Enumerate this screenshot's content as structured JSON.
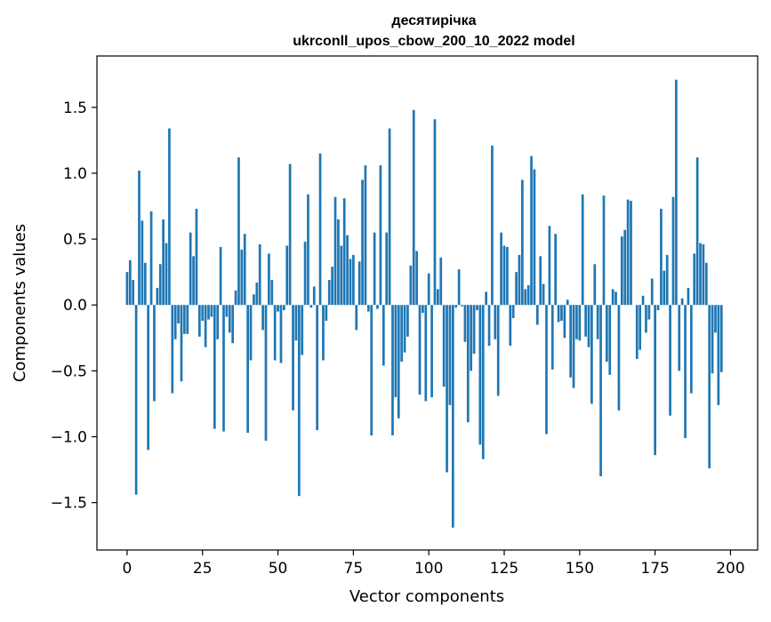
{
  "chart_data": {
    "type": "bar",
    "title": "десятирічка",
    "subtitle": "ukrconll_upos_cbow_200_10_2022 model",
    "xlabel": "Vector components",
    "ylabel": "Components values",
    "xlim": [
      -10,
      209
    ],
    "ylim": [
      -1.86,
      1.89
    ],
    "x_ticks": [
      0,
      25,
      50,
      75,
      100,
      125,
      150,
      175,
      200
    ],
    "y_ticks": [
      -1.5,
      -1.0,
      -0.5,
      0.0,
      0.5,
      1.0,
      1.5
    ],
    "y_tick_labels": [
      "−1.5",
      "−1.0",
      "−0.5",
      "0.0",
      "0.5",
      "1.0",
      "1.5"
    ],
    "grid": false,
    "legend": "none",
    "bar_color": "#1f77b4",
    "values": [
      0.25,
      0.34,
      0.19,
      -1.44,
      1.02,
      0.64,
      0.32,
      -1.1,
      0.71,
      -0.73,
      0.13,
      0.31,
      0.65,
      0.47,
      1.34,
      -0.67,
      -0.26,
      -0.14,
      -0.58,
      -0.22,
      -0.22,
      0.55,
      0.37,
      0.73,
      -0.24,
      -0.12,
      -0.32,
      -0.11,
      -0.09,
      -0.94,
      -0.26,
      0.44,
      -0.96,
      -0.09,
      -0.21,
      -0.29,
      0.11,
      1.12,
      0.42,
      0.54,
      -0.97,
      -0.42,
      0.08,
      0.17,
      0.46,
      -0.19,
      -1.03,
      0.39,
      0.19,
      -0.42,
      -0.05,
      -0.44,
      -0.04,
      0.45,
      1.07,
      -0.8,
      -0.27,
      -1.45,
      -0.38,
      0.48,
      0.84,
      -0.02,
      0.14,
      -0.95,
      1.15,
      -0.42,
      -0.12,
      0.19,
      0.29,
      0.82,
      0.65,
      0.45,
      0.81,
      0.53,
      0.35,
      0.38,
      -0.19,
      0.33,
      0.95,
      1.06,
      -0.05,
      -0.99,
      0.55,
      -0.03,
      1.06,
      -0.46,
      0.55,
      1.34,
      -0.99,
      -0.7,
      -0.86,
      -0.43,
      -0.36,
      -0.24,
      0.3,
      1.48,
      0.41,
      -0.68,
      -0.06,
      -0.73,
      0.24,
      -0.7,
      1.41,
      0.12,
      0.36,
      -0.62,
      -1.27,
      -0.76,
      -1.69,
      -0.02,
      0.27,
      -0.01,
      -0.28,
      -0.89,
      -0.5,
      -0.37,
      -0.04,
      -1.06,
      -1.17,
      0.1,
      -0.31,
      1.21,
      -0.26,
      -0.69,
      0.55,
      0.45,
      0.44,
      -0.31,
      -0.1,
      0.25,
      0.38,
      0.95,
      0.12,
      0.15,
      1.13,
      1.03,
      -0.15,
      0.37,
      0.16,
      -0.98,
      0.6,
      -0.49,
      0.54,
      -0.13,
      -0.12,
      -0.25,
      0.04,
      -0.55,
      -0.63,
      -0.26,
      -0.27,
      0.84,
      -0.24,
      -0.32,
      -0.75,
      0.31,
      -0.26,
      -1.3,
      0.83,
      -0.43,
      -0.53,
      0.12,
      0.1,
      -0.8,
      0.52,
      0.57,
      0.8,
      0.79,
      0.0,
      -0.41,
      -0.34,
      0.07,
      -0.21,
      -0.11,
      0.2,
      -1.14,
      -0.04,
      0.73,
      0.26,
      0.38,
      -0.84,
      0.82,
      1.71,
      -0.5,
      0.05,
      -1.01,
      0.13,
      -0.67,
      0.39,
      1.12,
      0.47,
      0.46,
      0.32,
      -1.24,
      -0.52,
      -0.21,
      -0.76,
      -0.51
    ]
  }
}
